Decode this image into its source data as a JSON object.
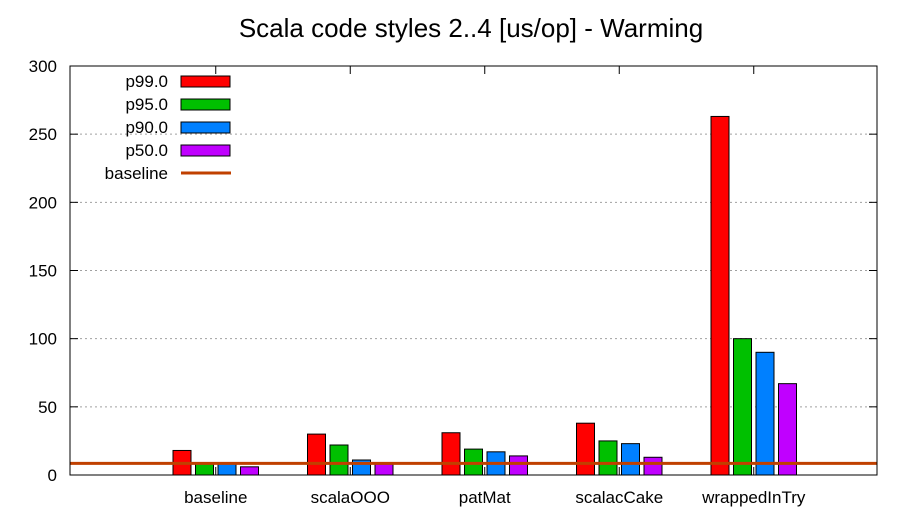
{
  "chart_data": {
    "type": "bar",
    "title": "Scala code styles 2..4 [us/op] - Warming",
    "xlabel": "",
    "ylabel": "",
    "ylim": [
      0,
      300
    ],
    "yticks": [
      0,
      50,
      100,
      150,
      200,
      250,
      300
    ],
    "grid": true,
    "legend_position": "top-left",
    "categories": [
      "baseline",
      "scalaOOO",
      "patMat",
      "scalacCake",
      "wrappedInTry"
    ],
    "series": [
      {
        "name": "p99.0",
        "color": "#ff0000",
        "values": [
          18,
          30,
          31,
          38,
          263
        ]
      },
      {
        "name": "p95.0",
        "color": "#00c000",
        "values": [
          9,
          22,
          19,
          25,
          100
        ]
      },
      {
        "name": "p90.0",
        "color": "#0080ff",
        "values": [
          9,
          11,
          17,
          23,
          90
        ]
      },
      {
        "name": "p50.0",
        "color": "#c000ff",
        "values": [
          6,
          8,
          14,
          13,
          67
        ]
      }
    ],
    "baseline": {
      "name": "baseline",
      "color": "#c04000",
      "value": 8.5
    }
  }
}
